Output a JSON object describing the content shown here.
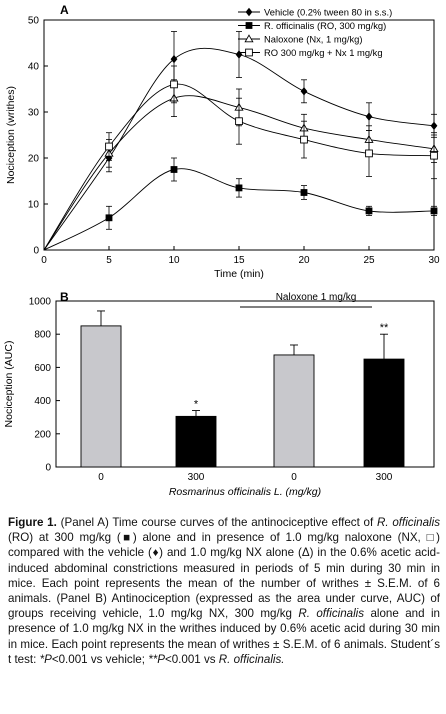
{
  "panel_a_label": "A",
  "panel_b_label": "B",
  "chart_data": [
    {
      "type": "line",
      "panel": "A",
      "xlabel": "Time (min)",
      "ylabel": "Nociception (writhes)",
      "xlim": [
        0,
        30
      ],
      "ylim": [
        0,
        50
      ],
      "xticks": [
        0,
        5,
        10,
        15,
        20,
        25,
        30
      ],
      "yticks": [
        0,
        10,
        20,
        30,
        40,
        50
      ],
      "grid": false,
      "legend_position": "top-right",
      "series": [
        {
          "name": "Vehicle (0.2% tween 80 in s.s.)",
          "marker": "diamond-filled",
          "x": [
            0,
            5,
            10,
            15,
            20,
            25,
            30
          ],
          "y": [
            0,
            20,
            41.5,
            42.5,
            34.5,
            29,
            27
          ],
          "err": [
            0,
            3,
            6,
            5,
            2.5,
            3,
            2.5
          ]
        },
        {
          "name": "R. officinalis (RO, 300 mg/kg)",
          "marker": "square-filled",
          "x": [
            0,
            5,
            10,
            15,
            20,
            25,
            30
          ],
          "y": [
            0,
            7,
            17.5,
            13.5,
            12.5,
            8.5,
            8.5
          ],
          "err": [
            0,
            2.5,
            2.5,
            2,
            1.5,
            1,
            1
          ]
        },
        {
          "name": "Naloxone (Nx, 1 mg/kg)",
          "marker": "triangle-open",
          "x": [
            0,
            5,
            10,
            15,
            20,
            25,
            30
          ],
          "y": [
            0,
            21,
            33,
            31,
            26.5,
            24,
            22
          ],
          "err": [
            0,
            3,
            4,
            4,
            3,
            3,
            3
          ]
        },
        {
          "name": "RO 300 mg/kg + Nx 1 mg/kg",
          "marker": "square-open",
          "x": [
            0,
            5,
            10,
            15,
            20,
            25,
            30
          ],
          "y": [
            0,
            22.5,
            36,
            28,
            24,
            21,
            20.5
          ],
          "err": [
            0,
            3,
            4,
            5,
            4,
            5,
            5
          ]
        }
      ]
    },
    {
      "type": "bar",
      "panel": "B",
      "ylabel": "Nociception (AUC)",
      "xlabel": "Rosmarinus officinalis L. (mg/kg)",
      "categories": [
        "0",
        "300",
        "0",
        "300"
      ],
      "values": [
        850,
        305,
        675,
        650
      ],
      "errors": [
        90,
        35,
        60,
        150
      ],
      "colors": [
        "#c8c8cc",
        "#000000",
        "#c8c8cc",
        "#000000"
      ],
      "annotations": [
        "",
        "*",
        "",
        "**"
      ],
      "group_label": "Naloxone 1 mg/kg",
      "ylim": [
        0,
        1000
      ],
      "yticks": [
        0,
        200,
        400,
        600,
        800,
        1000
      ],
      "grid": false
    }
  ],
  "caption": {
    "label": "Figure 1.",
    "text_1": " (Panel A) Time course curves of the antinociceptive effect of ",
    "italic_1": "R. officinalis",
    "text_2": " (RO) at 300 mg/kg (■) alone and in presence of 1.0 mg/kg naloxone (NX, □) compared with the vehicle (♦) and 1.0 mg/kg NX alone (Δ) in the 0.6% acetic acid-induced abdominal constrictions measured in periods of 5 min during 30 min in mice. Each point represents the mean of the number of writhes ± S.E.M. of 6 animals. (Panel B) Antinociception (expressed as the area under curve, AUC) of groups receiving vehicle, 1.0 mg/kg NX, 300 mg/kg ",
    "italic_2": "R. officinalis",
    "text_3": " alone and in presence of 1.0 mg/kg NX in the writhes induced by 0.6% acetic acid during 30 min in mice. Each point represents the mean of writhes ± S.E.M. of 6 animals. Student´s t test: ",
    "italic_3": "*P",
    "text_4": "<0.001 vs vehicle; ",
    "italic_4": "**P",
    "text_5": "<0.001 vs ",
    "italic_5": "R. officinalis."
  }
}
